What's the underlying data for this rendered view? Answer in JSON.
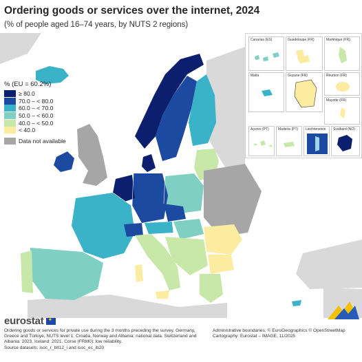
{
  "title": "Ordering goods or services over the internet, 2024",
  "subtitle": "(% of people aged 16–74 years, by NUTS 2 regions)",
  "legend": {
    "title": "% (EU = 60.2%)",
    "classes": [
      {
        "label": "≥ 80.0",
        "color": "#0c1f6e"
      },
      {
        "label": "70.0 – < 80.0",
        "color": "#1c4aa0"
      },
      {
        "label": "60.0 – < 70.0",
        "color": "#3ab3c8"
      },
      {
        "label": "50.0 – < 60.0",
        "color": "#7fd0c2"
      },
      {
        "label": "40.0 – < 50.0",
        "color": "#c7e8a8"
      },
      {
        "label": "< 40.0",
        "color": "#fbeca0"
      }
    ],
    "na_label": "Data not available",
    "na_color": "#a6a6a6"
  },
  "insets": [
    {
      "label": "Canarias (ES)",
      "scale": "0   100"
    },
    {
      "label": "Guadeloupe (FR)",
      "scale": "0   25"
    },
    {
      "label": "Martinique (FR)",
      "scale": "0   20"
    },
    {
      "label": "Réunion (FR)",
      "scale": "0   20"
    },
    {
      "label": "Malta",
      "scale": "0   10"
    },
    {
      "label": "Guyane (FR)",
      "scale": "0   100"
    },
    {
      "label": "Mayotte (FR)",
      "scale": "0   15"
    },
    {
      "label": "Açores (PT)",
      "scale": "0   50"
    },
    {
      "label": "Madeira (PT)",
      "scale": "0   20"
    },
    {
      "label": "Liechtenstein",
      "scale": "0   5"
    },
    {
      "label": "Svalbard (NO)",
      "scale": "0   100"
    }
  ],
  "logo": "eurostat",
  "footnote": "Ordering goods or services for private use during the 3 months preceding the survey. Germany, Greece and Türkiye, NUTS level 1. Croatia, Norway and Albania: national data. Switzerland and Albania: 2023. Iceland: 2021. Corse (FRM0): low reliability.",
  "source": "Source datasets: isoc_r_blt12_i and isoc_ec_ib20",
  "credits_boundaries": "Administrative boundaries: © EuroGeographics © OpenStreetMap",
  "credits_cartography": "Cartography: Eurostat – IMAGE, 11/2025"
}
